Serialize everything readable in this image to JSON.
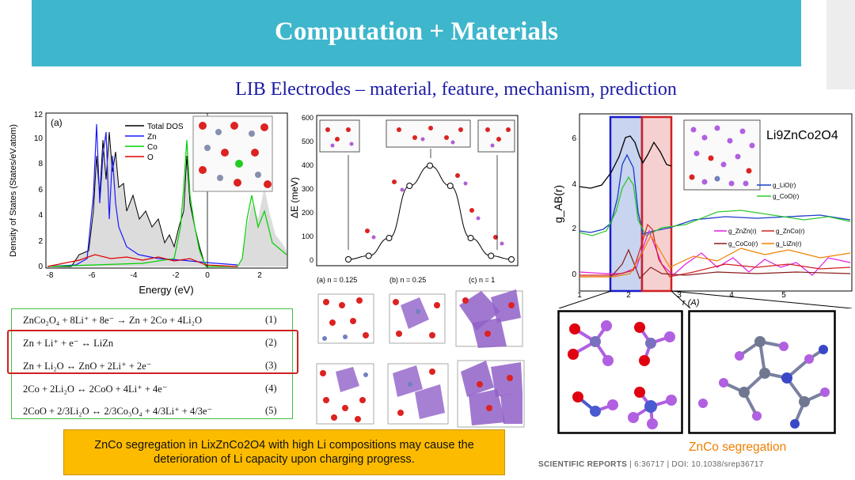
{
  "banner_title": "Computation + Materials",
  "subtitle": "LIB Electrodes – material, feature, mechanism, prediction",
  "dos_chart": {
    "panel_label": "(a)",
    "ylabel": "Density of States (States/eV.atom)",
    "xlabel": "Energy (eV)",
    "xticks": [
      "-8",
      "-6",
      "-4",
      "-2",
      "0",
      "2"
    ],
    "yticks": [
      "0",
      "2",
      "4",
      "6",
      "8",
      "10",
      "12"
    ],
    "legend": [
      {
        "name": "Total DOS",
        "color": "#000000"
      },
      {
        "name": "Zn",
        "color": "#1a1aff"
      },
      {
        "name": "Co",
        "color": "#00d000"
      },
      {
        "name": "O",
        "color": "#e00000"
      }
    ]
  },
  "energy_chart": {
    "ylabel": "ΔE (meV)",
    "yticks": [
      "0",
      "100",
      "200",
      "300",
      "400",
      "500",
      "600"
    ],
    "points": [
      0,
      15,
      90,
      310,
      395,
      310,
      90,
      15,
      0
    ]
  },
  "crystal_captions": [
    "(a) n = 0.125",
    "(b) n = 0.25",
    "(c) n = 1"
  ],
  "equations": [
    {
      "text": "ZnCo₂O₄ + 8Li⁺ + 8e⁻ → Zn + 2Co + 4Li₂O",
      "num": "(1)"
    },
    {
      "text": "Zn + Li⁺ + e⁻ ↔ LiZn",
      "num": "(2)"
    },
    {
      "text": "Zn + Li₂O ↔ ZnO + 2Li⁺ + 2e⁻",
      "num": "(3)"
    },
    {
      "text": "2Co + 2Li₂O ↔ 2CoO + 4Li⁺ + 4e⁻",
      "num": "(4)"
    },
    {
      "text": "2CoO + 2/3Li₂O ↔ 2/3Co₃O₄ + 4/3Li⁺ + 4/3e⁻",
      "num": "(5)"
    }
  ],
  "rdf_chart": {
    "ylabel": "g_AB(r)",
    "xlabel": "r (A)",
    "xticks": [
      "1",
      "2",
      "3",
      "4",
      "5"
    ],
    "yticks": [
      "0",
      "2",
      "4",
      "6"
    ],
    "formula": "Li9ZnCo2O4",
    "legend_upper": [
      {
        "name": "g_LiO(r)",
        "color": "#1a3cc8"
      },
      {
        "name": "g_CoO(r)",
        "color": "#30c830"
      }
    ],
    "legend_lower": [
      {
        "name": "g_ZnZn(r)",
        "color": "#e020e0"
      },
      {
        "name": "g_ZnCo(r)",
        "color": "#d02020"
      },
      {
        "name": "g_CoCo(r)",
        "color": "#8b1a1a"
      },
      {
        "name": "g_LiZn(r)",
        "color": "#f08000"
      }
    ]
  },
  "note": "ZnCo segregation in LixZnCo2O4 with high Li compositions may cause the deterioration of Li capacity upon charging progress.",
  "zn_caption": "ZnCo segregation",
  "citation": {
    "journal": "SCIENTIFIC REPORTS",
    "rest": " | 6:36717 | DOI: 10.1038/srep36717"
  }
}
